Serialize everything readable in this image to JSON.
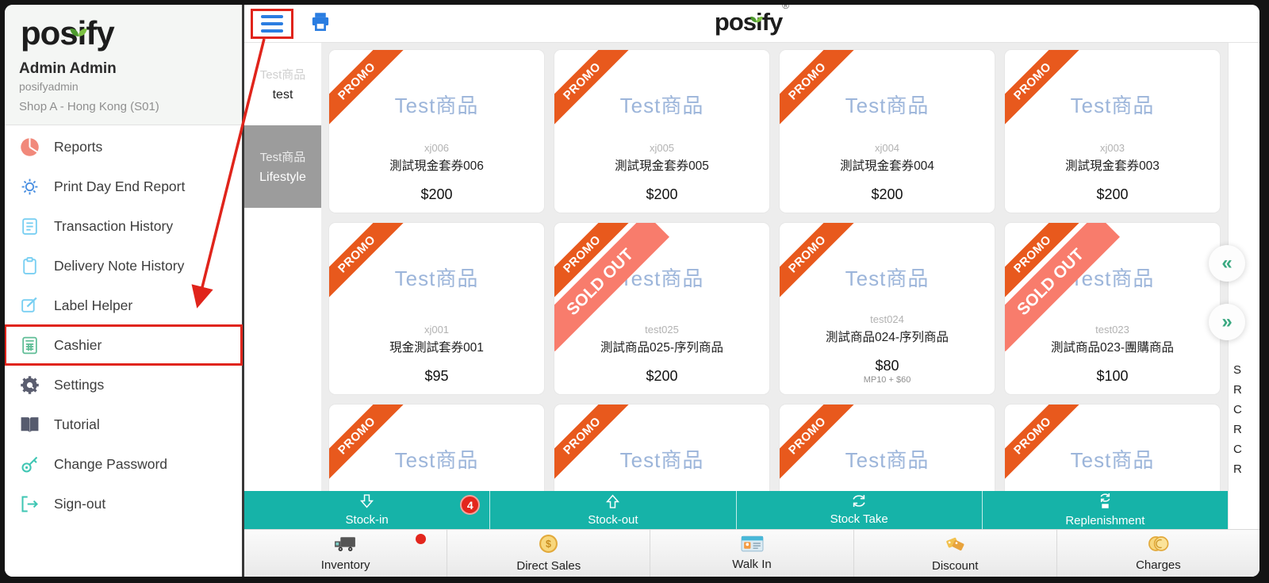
{
  "sidebar": {
    "logo_text": "posify",
    "user_name": "Admin Admin",
    "username": "posifyadmin",
    "shop": "Shop A - Hong Kong (S01)",
    "menu": [
      {
        "label": "Reports",
        "icon": "pie-chart",
        "highlighted": false
      },
      {
        "label": "Print Day End Report",
        "icon": "sun",
        "highlighted": false
      },
      {
        "label": "Transaction History",
        "icon": "document",
        "highlighted": false
      },
      {
        "label": "Delivery Note History",
        "icon": "clipboard",
        "highlighted": false
      },
      {
        "label": "Label Helper",
        "icon": "edit",
        "highlighted": false
      },
      {
        "label": "Cashier",
        "icon": "calculator",
        "highlighted": true
      },
      {
        "label": "Settings",
        "icon": "gear",
        "highlighted": false
      },
      {
        "label": "Tutorial",
        "icon": "book",
        "highlighted": false
      },
      {
        "label": "Change Password",
        "icon": "key",
        "highlighted": false
      },
      {
        "label": "Sign-out",
        "icon": "sign-out",
        "highlighted": false
      }
    ]
  },
  "header": {
    "logo_text": "posify",
    "registered_mark": "®"
  },
  "categories": [
    {
      "title": "Test商品",
      "subtitle": "test",
      "selected": false
    },
    {
      "title": "Test商品",
      "subtitle": "Lifestyle",
      "selected": true
    }
  ],
  "ribbons": {
    "promo": "PROMO",
    "sold_out": "SOLD OUT"
  },
  "products": [
    {
      "display_title": "Test商品",
      "code": "xj006",
      "name": "測試現金套券006",
      "price": "$200",
      "price_note": "",
      "promo": true,
      "sold_out": false
    },
    {
      "display_title": "Test商品",
      "code": "xj005",
      "name": "測試現金套券005",
      "price": "$200",
      "price_note": "",
      "promo": true,
      "sold_out": false
    },
    {
      "display_title": "Test商品",
      "code": "xj004",
      "name": "測試現金套券004",
      "price": "$200",
      "price_note": "",
      "promo": true,
      "sold_out": false
    },
    {
      "display_title": "Test商品",
      "code": "xj003",
      "name": "測試現金套券003",
      "price": "$200",
      "price_note": "",
      "promo": true,
      "sold_out": false
    },
    {
      "display_title": "Test商品",
      "code": "xj001",
      "name": "現金測試套券001",
      "price": "$95",
      "price_note": "",
      "promo": true,
      "sold_out": false
    },
    {
      "display_title": "Test商品",
      "code": "test025",
      "name": "測試商品025-序列商品",
      "price": "$200",
      "price_note": "",
      "promo": true,
      "sold_out": true
    },
    {
      "display_title": "Test商品",
      "code": "test024",
      "name": "測試商品024-序列商品",
      "price": "$80",
      "price_note": "MP10 + $60",
      "promo": true,
      "sold_out": false
    },
    {
      "display_title": "Test商品",
      "code": "test023",
      "name": "測試商品023-團購商品",
      "price": "$100",
      "price_note": "",
      "promo": true,
      "sold_out": true
    },
    {
      "display_title": "Test商品",
      "code": "",
      "name": "",
      "price": "",
      "price_note": "",
      "promo": true,
      "sold_out": false
    },
    {
      "display_title": "Test商品",
      "code": "",
      "name": "",
      "price": "",
      "price_note": "",
      "promo": true,
      "sold_out": false
    },
    {
      "display_title": "Test商品",
      "code": "",
      "name": "",
      "price": "",
      "price_note": "",
      "promo": true,
      "sold_out": false
    },
    {
      "display_title": "Test商品",
      "code": "",
      "name": "",
      "price": "",
      "price_note": "",
      "promo": true,
      "sold_out": false
    }
  ],
  "stock_bar": [
    {
      "label": "Stock-in",
      "icon": "arrow-down-outline",
      "badge": "4"
    },
    {
      "label": "Stock-out",
      "icon": "arrow-up-outline",
      "badge": ""
    },
    {
      "label": "Stock Take",
      "icon": "cycle",
      "badge": ""
    },
    {
      "label": "Replenishment",
      "icon": "cycle-box",
      "badge": ""
    }
  ],
  "bottom_nav": [
    {
      "label": "Inventory",
      "icon": "truck",
      "dot": true
    },
    {
      "label": "Direct Sales",
      "icon": "coin",
      "dot": false
    },
    {
      "label": "Walk In",
      "icon": "id-card",
      "dot": false
    },
    {
      "label": "Discount",
      "icon": "tags",
      "dot": false
    },
    {
      "label": "Charges",
      "icon": "coins",
      "dot": false
    }
  ],
  "right_panel": {
    "clipped_lines": [
      "S",
      "R",
      "C",
      "R",
      "C",
      "R"
    ],
    "collapse_label": "«",
    "expand_label": "»"
  },
  "colors": {
    "teal": "#16b3a8",
    "promo_orange": "#e8591d",
    "sold_out_pink": "#f87c6c",
    "annotation_red": "#e0241b",
    "accent_blue": "#2a7de1",
    "title_blue": "#9cb5da"
  }
}
